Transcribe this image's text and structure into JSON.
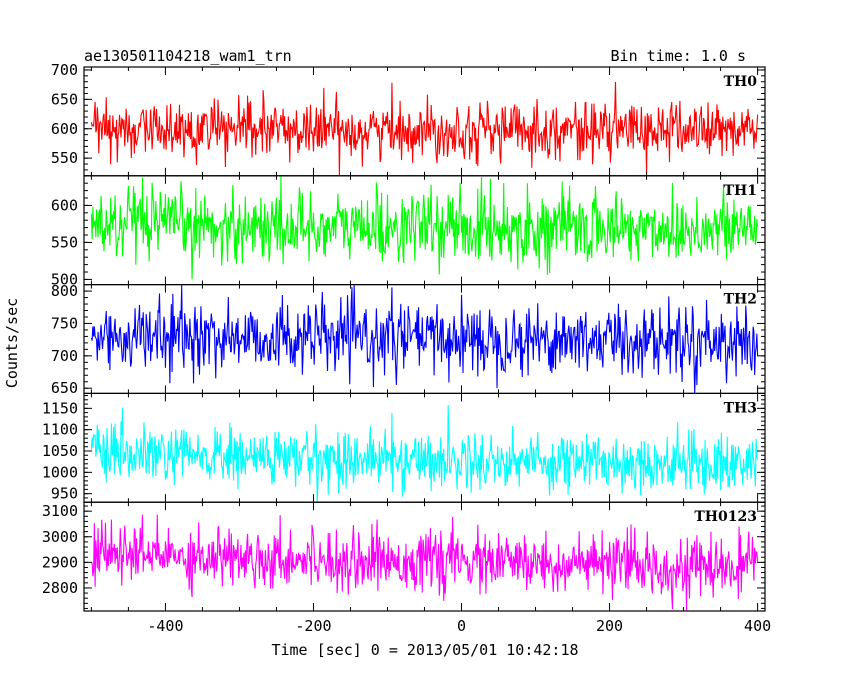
{
  "chart_data": {
    "type": "line",
    "title": "ae130501104218_wam1_trn",
    "bin_time_label": "Bin time: 1.0 s",
    "xlabel": "Time [sec] 0 = 2013/05/01 10:42:18",
    "ylabel": "Counts/sec",
    "xlim": [
      -510,
      410
    ],
    "x_ticks": [
      -400,
      -200,
      0,
      200,
      400
    ],
    "x_data_range": [
      -500,
      400
    ],
    "x_step": 1,
    "grid": false,
    "panels": [
      {
        "name": "TH0",
        "color": "#ff0000",
        "ylim": [
          520,
          705
        ],
        "y_ticks": [
          550,
          600,
          650,
          700
        ],
        "mean": 598,
        "noise_sd": 24,
        "trend": 0
      },
      {
        "name": "TH1",
        "color": "#00ff00",
        "ylim": [
          493,
          640
        ],
        "y_ticks": [
          500,
          550,
          600
        ],
        "mean": 573,
        "noise_sd": 24,
        "trend": -5
      },
      {
        "name": "TH2",
        "color": "#0000ff",
        "ylim": [
          642,
          810
        ],
        "y_ticks": [
          650,
          700,
          750,
          800
        ],
        "mean": 730,
        "noise_sd": 27,
        "trend": -6
      },
      {
        "name": "TH3",
        "color": "#00ffff",
        "ylim": [
          930,
          1185
        ],
        "y_ticks": [
          950,
          1000,
          1050,
          1100,
          1150
        ],
        "mean": 1040,
        "noise_sd": 34,
        "trend": -20
      },
      {
        "name": "TH0123",
        "color": "#ff00ff",
        "ylim": [
          2710,
          3135
        ],
        "y_ticks": [
          2800,
          2900,
          3000,
          3100
        ],
        "mean": 2935,
        "noise_sd": 58,
        "trend": -60
      }
    ]
  }
}
